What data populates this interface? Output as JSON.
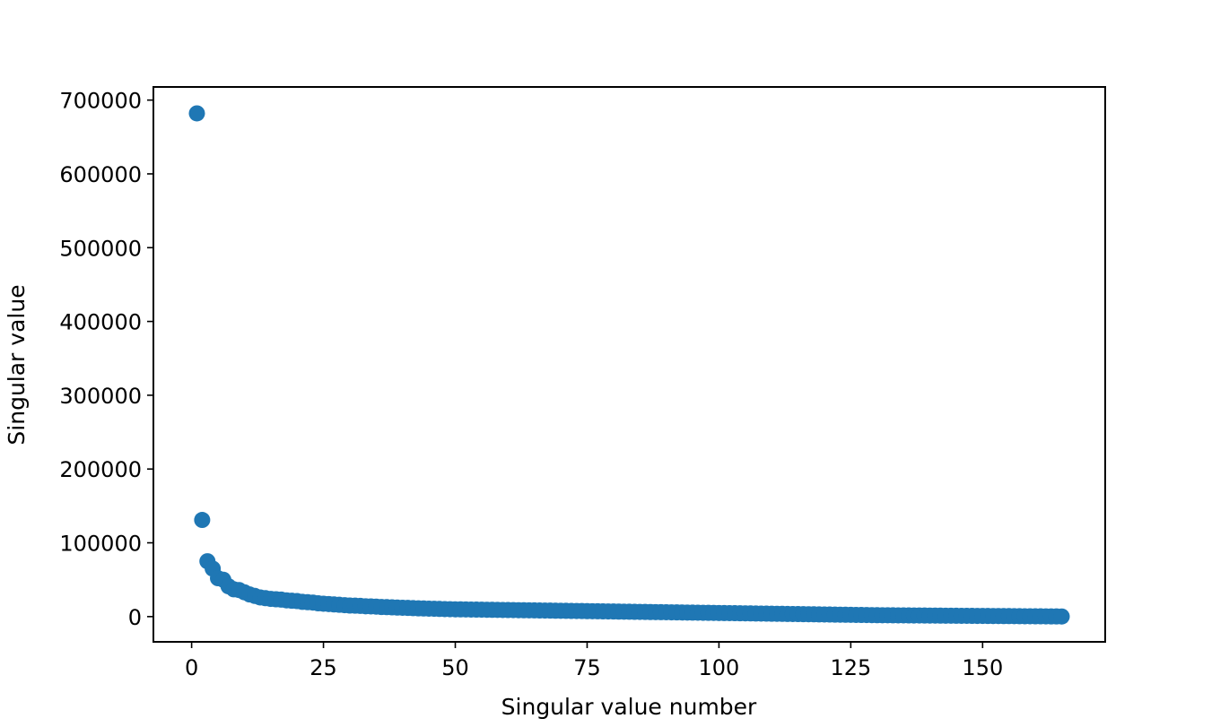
{
  "chart_data": {
    "type": "scatter",
    "title": "",
    "xlabel": "Singular value number",
    "ylabel": "Singular value",
    "xlim": [
      -7.25,
      173.25
    ],
    "ylim": [
      -34200,
      717800
    ],
    "xticks": [
      0,
      25,
      50,
      75,
      100,
      125,
      150
    ],
    "xtick_labels": [
      "0",
      "25",
      "50",
      "75",
      "100",
      "125",
      "150"
    ],
    "yticks": [
      0,
      100000,
      200000,
      300000,
      400000,
      500000,
      600000,
      700000
    ],
    "ytick_labels": [
      "0",
      "100000",
      "200000",
      "300000",
      "400000",
      "500000",
      "600000",
      "700000"
    ],
    "grid": false,
    "legend": false,
    "marker_color": "#1f77b4",
    "series": [
      {
        "name": "singular values",
        "x": [
          1,
          2,
          3,
          4,
          5,
          6,
          7,
          8,
          9,
          10,
          11,
          12,
          13,
          14,
          15,
          16,
          17,
          18,
          19,
          20,
          21,
          22,
          23,
          24,
          25,
          26,
          27,
          28,
          29,
          30,
          31,
          32,
          33,
          34,
          35,
          36,
          37,
          38,
          39,
          40,
          41,
          42,
          43,
          44,
          45,
          46,
          47,
          48,
          49,
          50,
          51,
          52,
          53,
          54,
          55,
          56,
          57,
          58,
          59,
          60,
          61,
          62,
          63,
          64,
          65,
          66,
          67,
          68,
          69,
          70,
          71,
          72,
          73,
          74,
          75,
          76,
          77,
          78,
          79,
          80,
          81,
          82,
          83,
          84,
          85,
          86,
          87,
          88,
          89,
          90,
          91,
          92,
          93,
          94,
          95,
          96,
          97,
          98,
          99,
          100,
          101,
          102,
          103,
          104,
          105,
          106,
          107,
          108,
          109,
          110,
          111,
          112,
          113,
          114,
          115,
          116,
          117,
          118,
          119,
          120,
          121,
          122,
          123,
          124,
          125,
          126,
          127,
          128,
          129,
          130,
          131,
          132,
          133,
          134,
          135,
          136,
          137,
          138,
          139,
          140,
          141,
          142,
          143,
          144,
          145,
          146,
          147,
          148,
          149,
          150,
          151,
          152,
          153,
          154,
          155,
          156,
          157,
          158,
          159,
          160,
          161,
          162,
          163,
          164,
          165
        ],
        "y": [
          682000,
          131000,
          75000,
          65000,
          52000,
          50000,
          41000,
          37000,
          36000,
          33000,
          30000,
          28000,
          26000,
          25000,
          24000,
          23500,
          23000,
          22000,
          21500,
          21000,
          20000,
          19500,
          19000,
          18000,
          17500,
          17000,
          16500,
          16000,
          15500,
          15000,
          14800,
          14500,
          14000,
          13800,
          13500,
          13000,
          12800,
          12500,
          12200,
          12000,
          11800,
          11500,
          11200,
          11000,
          10800,
          10600,
          10400,
          10200,
          10000,
          9900,
          9800,
          9700,
          9600,
          9500,
          9400,
          9300,
          9200,
          9100,
          9000,
          8900,
          8800,
          8700,
          8600,
          8500,
          8400,
          8300,
          8200,
          8100,
          8000,
          7900,
          7800,
          7700,
          7600,
          7500,
          7400,
          7300,
          7200,
          7100,
          7000,
          6900,
          6800,
          6700,
          6600,
          6500,
          6400,
          6300,
          6200,
          6100,
          6000,
          5900,
          5800,
          5700,
          5600,
          5500,
          5400,
          5300,
          5200,
          5100,
          5000,
          4900,
          4800,
          4700,
          4600,
          4500,
          4400,
          4300,
          4200,
          4100,
          4000,
          3900,
          3800,
          3700,
          3600,
          3500,
          3400,
          3300,
          3200,
          3100,
          3000,
          2900,
          2800,
          2700,
          2600,
          2500,
          2400,
          2300,
          2200,
          2100,
          2000,
          1900,
          1850,
          1800,
          1750,
          1700,
          1650,
          1600,
          1550,
          1500,
          1450,
          1400,
          1350,
          1300,
          1250,
          1200,
          1150,
          1100,
          1050,
          1000,
          950,
          900,
          850,
          800,
          750,
          700,
          650,
          600,
          550,
          500,
          450,
          400,
          350,
          300,
          250,
          200,
          150
        ]
      }
    ]
  }
}
